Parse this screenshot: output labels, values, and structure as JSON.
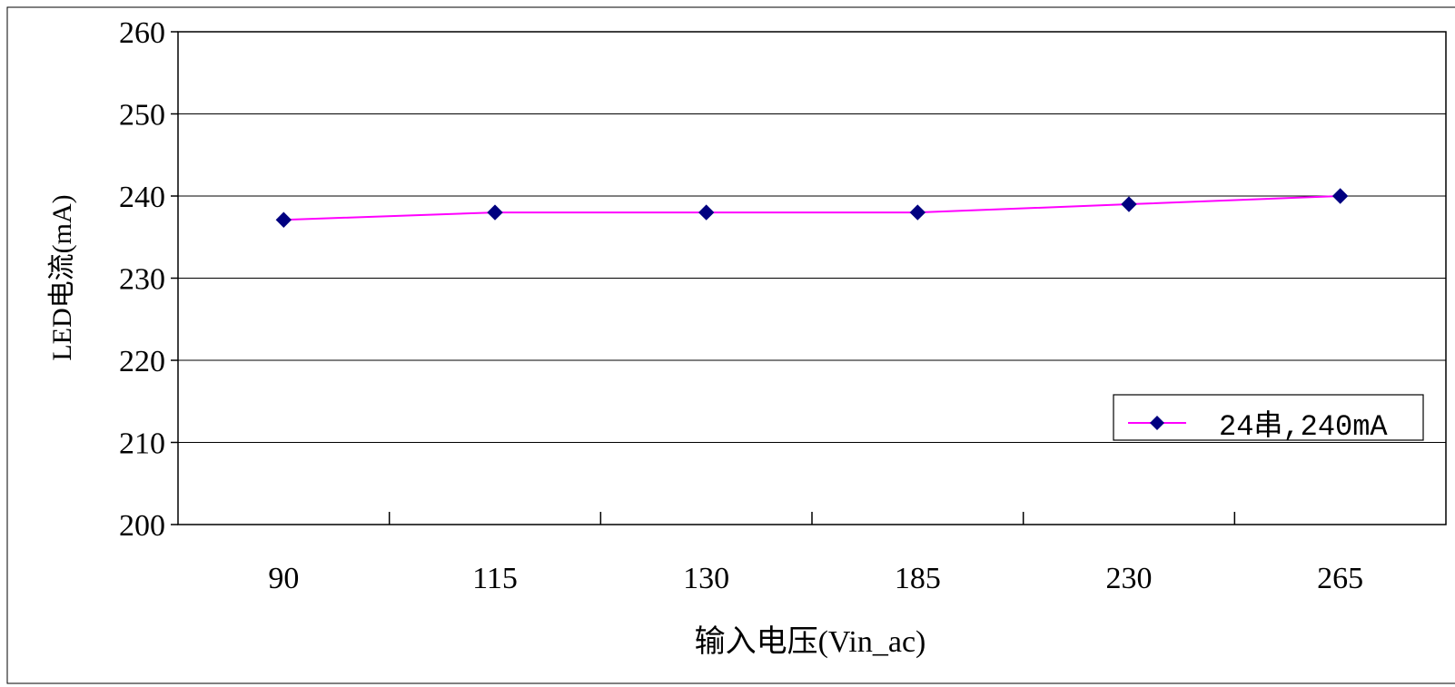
{
  "chart_data": {
    "type": "line",
    "title": "",
    "xlabel": "输入电压(Vin_ac)",
    "ylabel": "LED电流(mA)",
    "categories": [
      "90",
      "115",
      "130",
      "185",
      "230",
      "265"
    ],
    "series": [
      {
        "name": "24串,240mA",
        "values": [
          237.1,
          238,
          238,
          238,
          239,
          240
        ]
      }
    ],
    "ylim": [
      200,
      260
    ],
    "yticks": [
      200,
      210,
      220,
      230,
      240,
      250,
      260
    ],
    "grid": "horizontal",
    "legend_position": "bottom-right",
    "colors": {
      "line": "#ff00ff",
      "marker": "#000080"
    }
  }
}
